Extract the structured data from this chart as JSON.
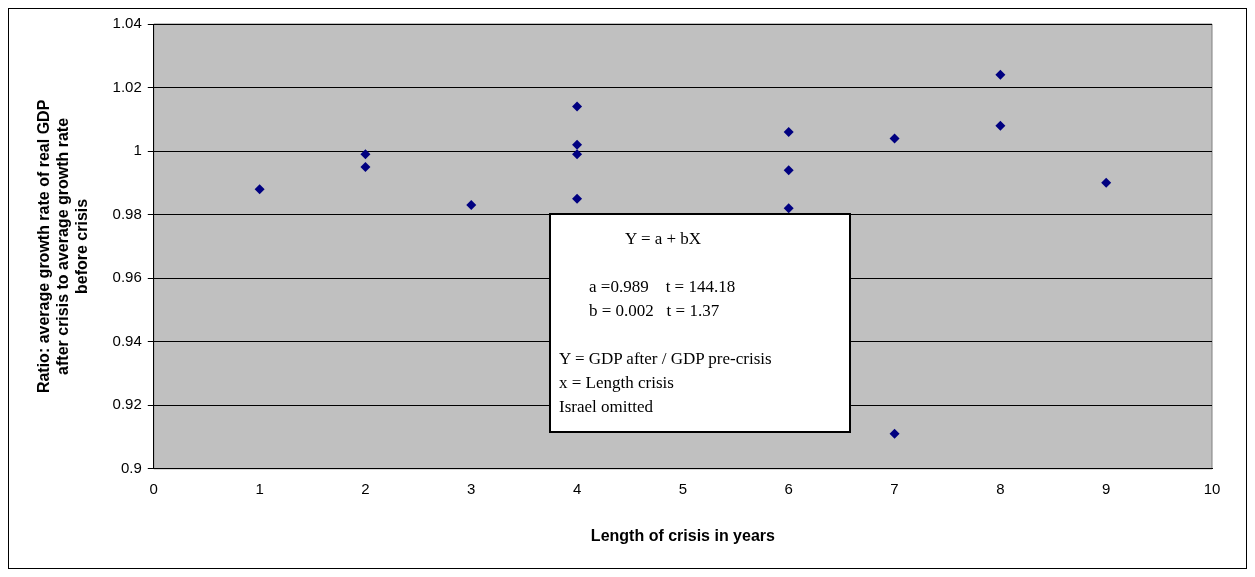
{
  "chart_data": {
    "type": "scatter",
    "xlabel": "Length of crisis in years",
    "ylabel": "Ratio: average growth rate of real GDP after crisis to average growth rate before crisis",
    "x": [
      1,
      2,
      2,
      3,
      4,
      4,
      4,
      4,
      6,
      6,
      6,
      7,
      7,
      8,
      8,
      9
    ],
    "series": [
      {
        "color": "#000080",
        "values": [
          0.988,
          0.999,
          0.995,
          0.983,
          1.014,
          1.002,
          0.999,
          0.985,
          1.006,
          0.994,
          0.982,
          1.004,
          0.911,
          1.024,
          1.008,
          0.99
        ]
      }
    ],
    "xlim": [
      0,
      10
    ],
    "xticks": [
      0,
      1,
      2,
      3,
      4,
      5,
      6,
      7,
      8,
      9,
      10
    ],
    "ylim": [
      0.9,
      1.04
    ],
    "yticks": [
      0.9,
      0.92,
      0.94,
      0.96,
      0.98,
      1,
      1.02,
      1.04
    ],
    "grid": "y",
    "legend": false,
    "marker": "diamond",
    "annotations": [
      "Y = a + bX",
      "a =0.989    t = 144.18",
      "b = 0.002   t = 1.37",
      "Y = GDP after / GDP pre-crisis",
      "x = Length crisis",
      "Israel omitted"
    ]
  }
}
